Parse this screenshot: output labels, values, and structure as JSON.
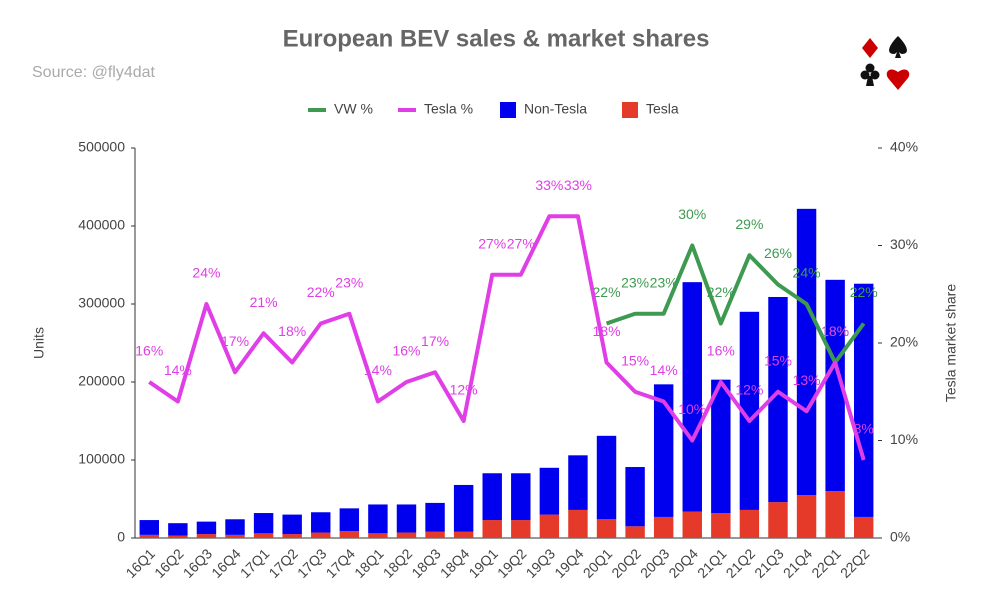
{
  "chart_data": {
    "type": "bar",
    "stacked": true,
    "grid": false,
    "title": "European BEV sales & market shares",
    "subtitle": "Source: @fly4dat",
    "y_label": "Units",
    "y2_label": "Tesla market share",
    "legend_position": "top",
    "categories": [
      "16Q1",
      "16Q2",
      "16Q3",
      "16Q4",
      "17Q1",
      "17Q2",
      "17Q3",
      "17Q4",
      "18Q1",
      "18Q2",
      "18Q3",
      "18Q4",
      "19Q1",
      "19Q2",
      "19Q3",
      "19Q4",
      "20Q1",
      "20Q2",
      "20Q3",
      "20Q4",
      "21Q1",
      "21Q2",
      "21Q3",
      "21Q4",
      "22Q1",
      "22Q2"
    ],
    "ylim": [
      0,
      500000
    ],
    "yticks": [
      0,
      100000,
      200000,
      300000,
      400000,
      500000
    ],
    "y2lim": [
      0,
      40
    ],
    "y2ticks": [
      {
        "value": 0,
        "label": "0%"
      },
      {
        "value": 10,
        "label": "10%"
      },
      {
        "value": 20,
        "label": "20%"
      },
      {
        "value": 30,
        "label": "30%"
      },
      {
        "value": 40,
        "label": "40%"
      }
    ],
    "series": [
      {
        "name": "VW %",
        "type": "line",
        "axis": "y2",
        "color": "#3d9a50",
        "values": [
          null,
          null,
          null,
          null,
          null,
          null,
          null,
          null,
          null,
          null,
          null,
          null,
          null,
          null,
          null,
          null,
          22,
          23,
          23,
          30,
          22,
          29,
          26,
          24,
          18,
          22
        ],
        "value_labels": [
          null,
          null,
          null,
          null,
          null,
          null,
          null,
          null,
          null,
          null,
          null,
          null,
          null,
          null,
          null,
          null,
          "22%",
          "23%",
          "23%",
          "30%",
          "22%",
          "29%",
          "26%",
          "24%",
          "18%",
          "22%"
        ]
      },
      {
        "name": "Tesla %",
        "type": "line",
        "axis": "y2",
        "color": "#e03ee6",
        "values": [
          16,
          14,
          24,
          17,
          21,
          18,
          22,
          23,
          14,
          16,
          17,
          12,
          27,
          27,
          33,
          33,
          18,
          15,
          14,
          10,
          16,
          12,
          15,
          13,
          18,
          8
        ],
        "value_labels": [
          "16%",
          "14%",
          "24%",
          "17%",
          "21%",
          "18%",
          "22%",
          "23%",
          "14%",
          "16%",
          "17%",
          "12%",
          "27%",
          "27%",
          "33%",
          "33%",
          "18%",
          "15%",
          "14%",
          "10%",
          "16%",
          "12%",
          "15%",
          "13%",
          "18%",
          "8%"
        ]
      },
      {
        "name": "Non-Tesla",
        "type": "bar",
        "color": "#0000ee",
        "values": [
          19000,
          16000,
          16000,
          20000,
          26000,
          25000,
          26000,
          29000,
          37000,
          36000,
          37000,
          60000,
          60000,
          60000,
          60000,
          70000,
          107000,
          76000,
          170000,
          294000,
          171000,
          254000,
          263000,
          367000,
          271000,
          299000
        ]
      },
      {
        "name": "Tesla",
        "type": "bar",
        "color": "#e53a2a",
        "values": [
          4000,
          3000,
          5000,
          4000,
          6000,
          5000,
          7000,
          9000,
          6000,
          7000,
          8000,
          8000,
          23000,
          23000,
          30000,
          36000,
          24000,
          15000,
          27000,
          34000,
          32000,
          36000,
          46000,
          55000,
          60000,
          27000
        ]
      }
    ]
  }
}
